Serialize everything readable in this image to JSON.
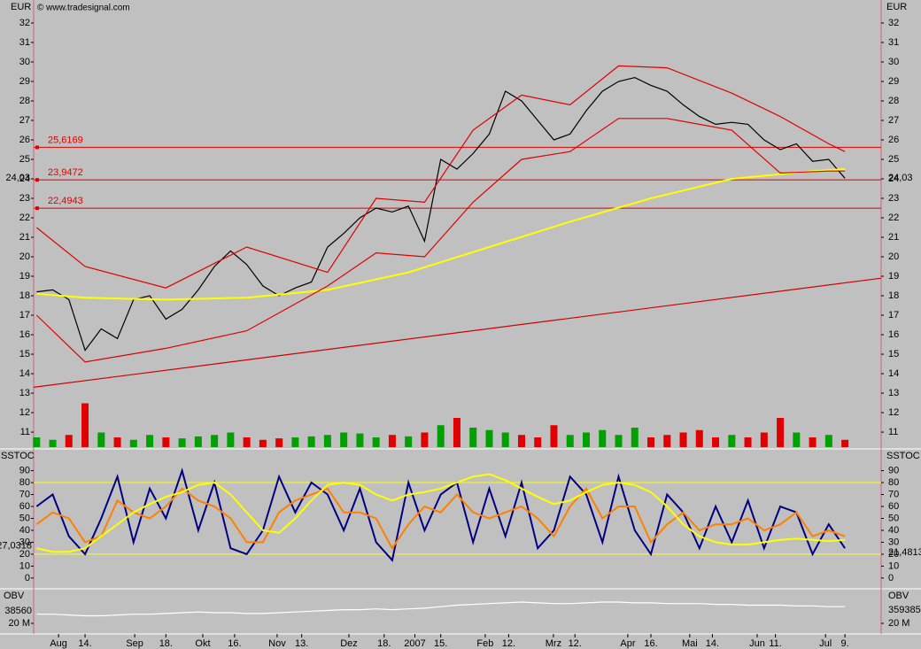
{
  "chart_data": [
    {
      "type": "line",
      "title": "© www.tradesignal.com",
      "y_label": "EUR",
      "xlim": [
        -3.18,
        49.24
      ],
      "ylim": [
        10.23,
        33.18
      ],
      "yticks": [
        11,
        12,
        13,
        14,
        15,
        16,
        17,
        18,
        19,
        20,
        21,
        22,
        23,
        24,
        25,
        26,
        27,
        28,
        29,
        30,
        31,
        32
      ],
      "series": [
        {
          "color": "#000000",
          "x": [
            -3,
            -2,
            -1,
            0,
            1,
            2,
            3,
            4,
            5,
            6,
            7,
            8,
            9,
            10,
            11,
            12,
            13,
            14,
            15,
            16,
            17,
            18,
            19,
            20,
            21,
            22,
            23,
            24,
            25,
            26,
            27,
            28,
            29,
            30,
            31,
            32,
            33,
            34,
            35,
            36,
            37,
            38,
            39,
            40,
            41,
            42,
            43,
            44,
            45,
            46,
            47
          ],
          "values": [
            18.2,
            18.3,
            17.8,
            15.2,
            16.3,
            15.8,
            17.8,
            18.0,
            16.8,
            17.3,
            18.3,
            19.5,
            20.3,
            19.6,
            18.5,
            18.0,
            18.4,
            18.7,
            20.5,
            21.2,
            22.0,
            22.5,
            22.3,
            22.6,
            20.8,
            25.0,
            24.5,
            25.3,
            26.3,
            28.5,
            28.0,
            27.0,
            26.0,
            26.3,
            27.5,
            28.5,
            29.0,
            29.2,
            28.8,
            28.5,
            27.8,
            27.2,
            26.8,
            26.9,
            26.8,
            26.0,
            25.5,
            25.8,
            24.9,
            25.0,
            24.03
          ]
        },
        {
          "color": "#ffff00",
          "x": [
            -3,
            0,
            5,
            10,
            15,
            20,
            25,
            30,
            35,
            40,
            45,
            47
          ],
          "values": [
            18.1,
            17.9,
            17.8,
            17.9,
            18.3,
            19.2,
            20.5,
            21.8,
            23.0,
            24.0,
            24.4,
            24.5
          ]
        },
        {
          "color": "#e00000",
          "x": [
            -3,
            0,
            5,
            10,
            15,
            18,
            21,
            24,
            27,
            30,
            33,
            36,
            40,
            43,
            46,
            47
          ],
          "values": [
            21.5,
            19.5,
            18.4,
            20.5,
            19.2,
            23.0,
            22.8,
            26.5,
            28.3,
            27.8,
            29.8,
            29.7,
            28.4,
            27.2,
            25.8,
            25.4
          ]
        },
        {
          "color": "#e00000",
          "x": [
            -3,
            0,
            5,
            10,
            15,
            18,
            21,
            24,
            27,
            30,
            33,
            36,
            40,
            43,
            46,
            47
          ],
          "values": [
            17.0,
            14.6,
            15.3,
            16.2,
            18.5,
            20.2,
            20.0,
            22.8,
            25.0,
            25.4,
            27.1,
            27.1,
            26.5,
            24.3,
            24.4,
            24.4
          ]
        },
        {
          "color": "#d00000",
          "x": [
            -3.18,
            49.24
          ],
          "values": [
            13.3,
            18.9
          ]
        }
      ],
      "levels": [
        {
          "value": 25.6169,
          "label": "25,6169"
        },
        {
          "value": 23.9472,
          "label": "23,9472"
        },
        {
          "value": 22.4943,
          "label": "22,4943"
        }
      ],
      "last_value": {
        "value": 24.03,
        "label": "24,03"
      },
      "volume": {
        "ylim": [
          0,
          100
        ],
        "up_color": "#00a000",
        "down_color": "#e00000",
        "values": [
          20,
          15,
          25,
          90,
          30,
          20,
          15,
          25,
          20,
          18,
          22,
          25,
          30,
          20,
          15,
          18,
          20,
          22,
          25,
          30,
          28,
          20,
          25,
          22,
          30,
          45,
          60,
          40,
          35,
          30,
          25,
          20,
          45,
          25,
          30,
          35,
          25,
          40,
          20,
          25,
          30,
          35,
          20,
          25,
          20,
          30,
          60,
          30,
          20,
          25,
          15
        ]
      }
    },
    {
      "type": "line",
      "y_label": "SSTOC",
      "xlim": [
        -3.18,
        49.24
      ],
      "ylim": [
        -9,
        106
      ],
      "yticks": [
        0,
        10,
        20,
        30,
        40,
        50,
        60,
        70,
        80,
        90
      ],
      "levels": [
        80,
        20
      ],
      "level_color": "#ffff00",
      "series": [
        {
          "color": "#000080",
          "x": [
            -3,
            -2,
            -1,
            0,
            1,
            2,
            3,
            4,
            5,
            6,
            7,
            8,
            9,
            10,
            11,
            12,
            13,
            14,
            15,
            16,
            17,
            18,
            19,
            20,
            21,
            22,
            23,
            24,
            25,
            26,
            27,
            28,
            29,
            30,
            31,
            32,
            33,
            34,
            35,
            36,
            37,
            38,
            39,
            40,
            41,
            42,
            43,
            44,
            45,
            46,
            47
          ],
          "values": [
            60,
            70,
            35,
            20,
            50,
            85,
            30,
            75,
            50,
            90,
            40,
            80,
            25,
            20,
            40,
            85,
            55,
            80,
            70,
            40,
            75,
            30,
            15,
            80,
            40,
            70,
            80,
            30,
            75,
            35,
            80,
            25,
            40,
            85,
            70,
            30,
            85,
            40,
            20,
            70,
            55,
            25,
            60,
            30,
            65,
            25,
            60,
            55,
            20,
            45,
            25
          ]
        },
        {
          "color": "#ff8000",
          "x": [
            -3,
            -2,
            -1,
            0,
            1,
            2,
            3,
            4,
            5,
            6,
            7,
            8,
            9,
            10,
            11,
            12,
            13,
            14,
            15,
            16,
            17,
            18,
            19,
            20,
            21,
            22,
            23,
            24,
            25,
            26,
            27,
            28,
            29,
            30,
            31,
            32,
            33,
            34,
            35,
            36,
            37,
            38,
            39,
            40,
            41,
            42,
            43,
            44,
            45,
            46,
            47
          ],
          "values": [
            45,
            55,
            50,
            30,
            35,
            65,
            55,
            50,
            60,
            75,
            65,
            60,
            50,
            30,
            30,
            55,
            65,
            70,
            75,
            55,
            55,
            50,
            25,
            45,
            60,
            55,
            70,
            55,
            50,
            55,
            60,
            50,
            35,
            60,
            75,
            50,
            60,
            60,
            30,
            45,
            55,
            40,
            45,
            45,
            50,
            40,
            45,
            55,
            35,
            40,
            35
          ]
        },
        {
          "color": "#ffff00",
          "x": [
            -3,
            -2,
            -1,
            0,
            1,
            2,
            3,
            4,
            5,
            6,
            7,
            8,
            9,
            10,
            11,
            12,
            13,
            14,
            15,
            16,
            17,
            18,
            19,
            20,
            21,
            22,
            23,
            24,
            25,
            26,
            27,
            28,
            29,
            30,
            31,
            32,
            33,
            34,
            35,
            36,
            37,
            38,
            39,
            40,
            41,
            42,
            43,
            44,
            45,
            46,
            47
          ],
          "values": [
            25,
            22,
            22,
            25,
            35,
            45,
            55,
            62,
            68,
            72,
            78,
            80,
            70,
            55,
            40,
            38,
            50,
            65,
            78,
            80,
            78,
            70,
            65,
            70,
            72,
            75,
            80,
            85,
            87,
            82,
            75,
            68,
            62,
            65,
            72,
            78,
            80,
            78,
            72,
            60,
            45,
            35,
            30,
            28,
            28,
            30,
            32,
            33,
            32,
            31,
            32
          ]
        }
      ],
      "last_values": [
        {
          "value": 27.0318,
          "label": "27,0318"
        },
        {
          "value": 21.4813,
          "label": "21,4813"
        }
      ]
    },
    {
      "type": "line",
      "y_label": "OBV",
      "xlim": [
        -3.18,
        49.24
      ],
      "ylim": [
        13.6,
        41.6
      ],
      "yticks": [
        {
          "value": 20,
          "label": "20 M"
        }
      ],
      "series": [
        {
          "color": "#ffffff",
          "x": [
            -3,
            -2,
            -1,
            0,
            1,
            2,
            3,
            4,
            5,
            6,
            7,
            8,
            9,
            10,
            11,
            12,
            13,
            14,
            15,
            16,
            17,
            18,
            19,
            20,
            21,
            22,
            23,
            24,
            25,
            26,
            27,
            28,
            29,
            30,
            31,
            32,
            33,
            34,
            35,
            36,
            37,
            38,
            39,
            40,
            41,
            42,
            43,
            44,
            45,
            46,
            47
          ],
          "values": [
            26,
            26,
            25.5,
            25,
            25,
            25.5,
            26,
            26,
            26.5,
            27,
            27.5,
            27,
            27,
            26.5,
            26.5,
            27,
            27.5,
            28,
            28.5,
            29,
            29,
            29.5,
            29,
            29.5,
            30,
            31,
            32,
            32.5,
            33,
            33.5,
            34,
            33.5,
            33,
            33,
            33.5,
            34,
            34,
            33.5,
            33.5,
            33,
            33,
            33,
            32.5,
            32.5,
            32,
            32,
            32,
            31.5,
            31.5,
            31,
            31
          ]
        }
      ],
      "end_labels": [
        "38560",
        "359385"
      ],
      "xticks": [
        {
          "value": -1.64,
          "label": "Aug"
        },
        {
          "value": 0,
          "label": "14."
        },
        {
          "value": 3.07,
          "label": "Sep"
        },
        {
          "value": 5,
          "label": "18."
        },
        {
          "value": 7.28,
          "label": "Okt"
        },
        {
          "value": 9.25,
          "label": "16."
        },
        {
          "value": 11.88,
          "label": "Nov"
        },
        {
          "value": 13.4,
          "label": "13."
        },
        {
          "value": 16.32,
          "label": "Dez"
        },
        {
          "value": 18.5,
          "label": "18."
        },
        {
          "value": 20.4,
          "label": "2007"
        },
        {
          "value": 22,
          "label": "15."
        },
        {
          "value": 24.75,
          "label": "Feb"
        },
        {
          "value": 26.2,
          "label": "12."
        },
        {
          "value": 28.97,
          "label": "Mrz"
        },
        {
          "value": 30.3,
          "label": "12."
        },
        {
          "value": 33.57,
          "label": "Apr"
        },
        {
          "value": 35,
          "label": "16."
        },
        {
          "value": 37.4,
          "label": "Mai"
        },
        {
          "value": 38.8,
          "label": "14."
        },
        {
          "value": 41.57,
          "label": "Jun"
        },
        {
          "value": 42.7,
          "label": "11."
        },
        {
          "value": 45.8,
          "label": "Jul"
        },
        {
          "value": 47,
          "label": "9."
        }
      ]
    }
  ]
}
